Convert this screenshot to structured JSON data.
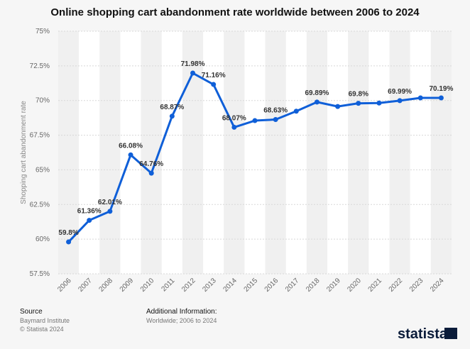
{
  "chart_data": {
    "type": "line",
    "title": "Online shopping cart abandonment rate worldwide between 2006 to 2024",
    "y_label": "Shopping cart abandonment rate",
    "categories": [
      "2006",
      "2007",
      "2008",
      "2009",
      "2010",
      "2011",
      "2012",
      "2013",
      "2014",
      "2015",
      "2016",
      "2017",
      "2018",
      "2019",
      "2020",
      "2021",
      "2022",
      "2023",
      "2024"
    ],
    "series": [
      {
        "name": "Shopping cart abandonment rate",
        "color": "#0f5fd8",
        "values": [
          59.8,
          61.36,
          62.01,
          66.08,
          64.76,
          68.87,
          71.98,
          71.16,
          68.07,
          68.55,
          68.63,
          69.23,
          69.89,
          69.57,
          69.8,
          69.82,
          69.99,
          70.19,
          70.19
        ],
        "value_labels": [
          "59.8%",
          "61.36%",
          "62.01%",
          "66.08%",
          "64.76%",
          "68.87%",
          "71.98%",
          "71.16%",
          "68.07%",
          null,
          "68.63%",
          null,
          "69.89%",
          null,
          "69.8%",
          null,
          "69.99%",
          null,
          "70.19%"
        ]
      }
    ],
    "ylim": [
      57.5,
      75
    ],
    "yticks": [
      {
        "value": 57.5,
        "label": "57.5%"
      },
      {
        "value": 60,
        "label": "60%"
      },
      {
        "value": 62.5,
        "label": "62.5%"
      },
      {
        "value": 65,
        "label": "65%"
      },
      {
        "value": 67.5,
        "label": "67.5%"
      },
      {
        "value": 70,
        "label": "70%"
      },
      {
        "value": 72.5,
        "label": "72.5%"
      },
      {
        "value": 75,
        "label": "75%"
      }
    ],
    "grid": true
  },
  "footer": {
    "source_title": "Source",
    "source": "Baymard Institute",
    "copyright": "© Statista 2024",
    "info_title": "Additional Information:",
    "info": "Worldwide; 2006 to 2024",
    "logo": "statista"
  }
}
